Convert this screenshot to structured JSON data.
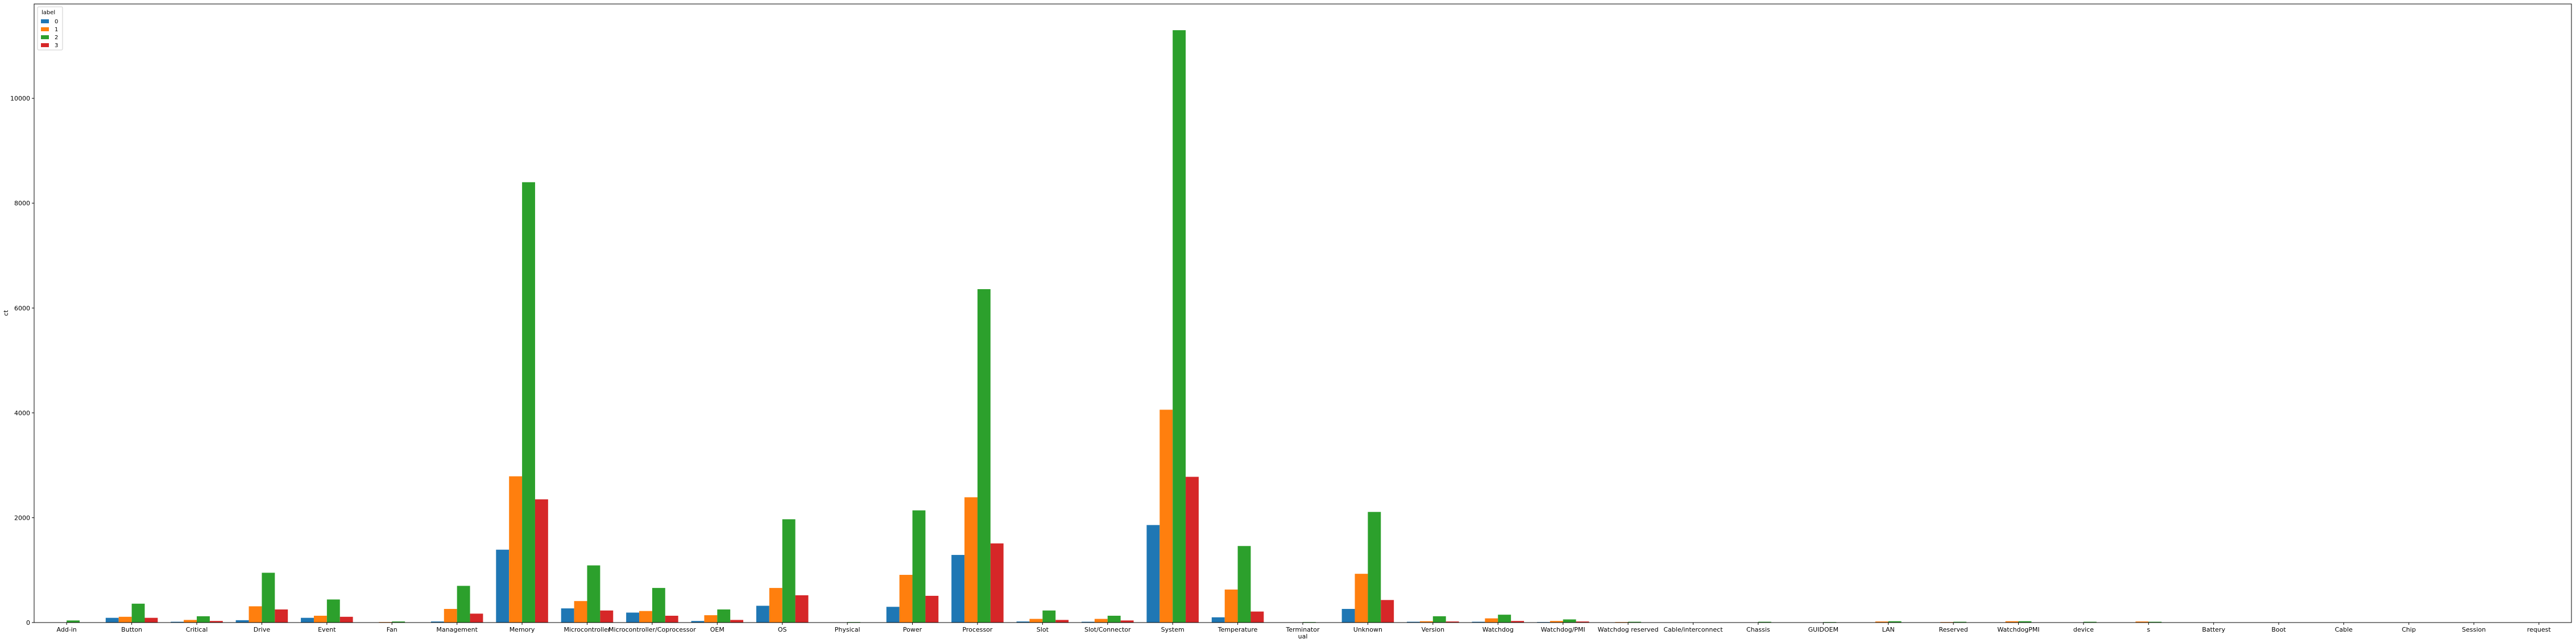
{
  "chart_data": {
    "type": "bar",
    "ylabel": "ct",
    "ylim": [
      0,
      11800
    ],
    "yticks": [
      0,
      2000,
      4000,
      6000,
      8000,
      10000
    ],
    "legend": {
      "title": "label",
      "placement": "top-left"
    },
    "categories": [
      "Add-in",
      "Button",
      "Critical",
      "Drive",
      "Event",
      "Fan",
      "Management",
      "Memory",
      "Microcontroller",
      "Microcontroller/Coprocessor",
      "OEM",
      "OS",
      "Physical",
      "Power",
      "Processor",
      "Slot",
      "Slot/Connector",
      "System",
      "Temperature",
      "Terminator",
      "Unknown",
      "Version",
      "Watchdog",
      "Watchdog/PMI",
      "Watchdog reserved",
      "Cable/interconnect",
      "Chassis",
      "GUIDOEM",
      "LAN",
      "Reserved",
      "WatchdogPMI",
      "device",
      "s",
      "Battery",
      "Boot",
      "Cable",
      "Chip",
      "Session",
      "request"
    ],
    "category_display": [
      [
        "Add-in"
      ],
      [
        "Button"
      ],
      [
        "Critical"
      ],
      [
        "Drive"
      ],
      [
        "Event"
      ],
      [
        "Fan"
      ],
      [
        "Management"
      ],
      [
        "Memory"
      ],
      [
        "Microcontroller"
      ],
      [
        "Microcontroller/Coprocessor"
      ],
      [
        "OEM"
      ],
      [
        "OS"
      ],
      [
        "Physical"
      ],
      [
        "Power"
      ],
      [
        "Processor"
      ],
      [
        "Slot"
      ],
      [
        "Slot/Connector"
      ],
      [
        "System"
      ],
      [
        "Temperature"
      ],
      [
        "Terminator",
        "ual"
      ],
      [
        "Unknown"
      ],
      [
        "Version"
      ],
      [
        "Watchdog"
      ],
      [
        "Watchdog/PMI"
      ],
      [
        "Watchdog reserved"
      ],
      [
        "Cable/interconnect"
      ],
      [
        "Chassis"
      ],
      [
        "GUIDOEM"
      ],
      [
        "LAN"
      ],
      [
        "Reserved"
      ],
      [
        "WatchdogPMI"
      ],
      [
        "device"
      ],
      [
        "s"
      ],
      [
        "Battery"
      ],
      [
        "Boot"
      ],
      [
        "Cable"
      ],
      [
        "Chip"
      ],
      [
        "Session"
      ],
      [
        "request"
      ]
    ],
    "series": [
      {
        "name": "0",
        "color": "#1f77b4",
        "values": [
          5,
          90,
          15,
          45,
          90,
          5,
          20,
          1390,
          270,
          190,
          30,
          320,
          0,
          300,
          1290,
          20,
          15,
          1860,
          100,
          5,
          260,
          15,
          15,
          10,
          5,
          0,
          5,
          5,
          5,
          5,
          5,
          5,
          5,
          0,
          0,
          0,
          0,
          0,
          0
        ]
      },
      {
        "name": "1",
        "color": "#ff7f0e",
        "values": [
          5,
          110,
          50,
          310,
          130,
          10,
          260,
          2790,
          410,
          220,
          140,
          660,
          5,
          910,
          2390,
          70,
          70,
          4060,
          630,
          5,
          930,
          25,
          80,
          30,
          10,
          0,
          5,
          5,
          20,
          10,
          25,
          5,
          20,
          0,
          0,
          0,
          5,
          0,
          0
        ]
      },
      {
        "name": "2",
        "color": "#2ca02c",
        "values": [
          40,
          360,
          120,
          950,
          440,
          20,
          700,
          8400,
          1090,
          660,
          250,
          1970,
          10,
          2140,
          6360,
          230,
          130,
          11300,
          1460,
          10,
          2110,
          120,
          150,
          60,
          15,
          5,
          15,
          10,
          25,
          15,
          25,
          15,
          15,
          5,
          5,
          5,
          5,
          5,
          5
        ]
      },
      {
        "name": "3",
        "color": "#d62728",
        "values": [
          5,
          90,
          30,
          250,
          110,
          5,
          170,
          2350,
          230,
          130,
          50,
          520,
          0,
          510,
          1510,
          50,
          40,
          2780,
          210,
          5,
          430,
          20,
          30,
          20,
          5,
          0,
          5,
          0,
          5,
          5,
          5,
          5,
          5,
          0,
          0,
          0,
          0,
          0,
          0
        ]
      }
    ]
  }
}
